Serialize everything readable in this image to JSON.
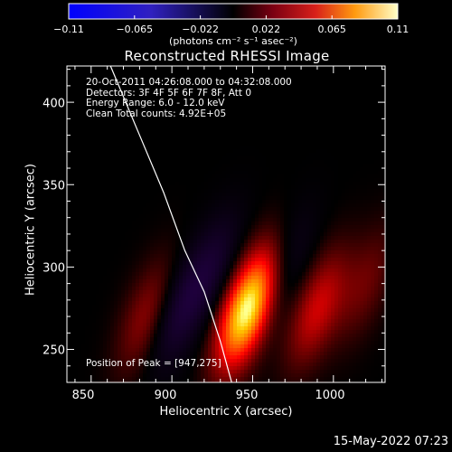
{
  "title": "Reconstructed RHESSI Image",
  "colorbar": {
    "ticks": [
      "−0.11",
      "−0.065",
      "−0.022",
      "0.022",
      "0.065",
      "0.11"
    ],
    "units": "(photons cm⁻² s⁻¹ asec⁻²)",
    "range": [
      -0.11,
      0.11
    ],
    "colormap": "red-temperature (blue for negative)"
  },
  "info_lines": [
    "20-Oct-2011 04:26:08.000 to 04:32:08.000",
    "Detectors: 3F 4F 5F 6F 7F 8F, Att 0",
    "Energy Range: 6.0 - 12.0 keV",
    "Clean    Total counts: 4.92E+05"
  ],
  "peak_text": "Position of Peak = [947,275]",
  "footer_date": "15-May-2022 07:23",
  "chart_data": {
    "type": "heatmap",
    "title": "Reconstructed RHESSI Image",
    "xlabel": "Heliocentric X (arcsec)",
    "ylabel": "Heliocentric Y (arcsec)",
    "xlim": [
      835,
      1032
    ],
    "ylim": [
      230,
      422
    ],
    "xticks": [
      "850",
      "900",
      "950",
      "1000"
    ],
    "xtick_values": [
      850,
      900,
      950,
      1000
    ],
    "yticks": [
      "400",
      "350",
      "300",
      "250"
    ],
    "ytick_values": [
      400,
      350,
      300,
      250
    ],
    "peak": {
      "x": 947,
      "y": 275
    },
    "limb_curve": [
      [
        862,
        422
      ],
      [
        880,
        380
      ],
      [
        895,
        345
      ],
      [
        908,
        310
      ],
      [
        920,
        285
      ],
      [
        930,
        255
      ],
      [
        937,
        230
      ]
    ],
    "sources": [
      {
        "x": 947,
        "y": 275,
        "amplitude": 0.11
      },
      {
        "x": 903,
        "y": 272,
        "amplitude": -0.03
      },
      {
        "x": 925,
        "y": 300,
        "amplitude": -0.025
      },
      {
        "x": 990,
        "y": 275,
        "amplitude": 0.04
      },
      {
        "x": 885,
        "y": 270,
        "amplitude": 0.03
      },
      {
        "x": 1020,
        "y": 290,
        "amplitude": 0.02
      },
      {
        "x": 970,
        "y": 300,
        "amplitude": -0.02
      }
    ]
  }
}
